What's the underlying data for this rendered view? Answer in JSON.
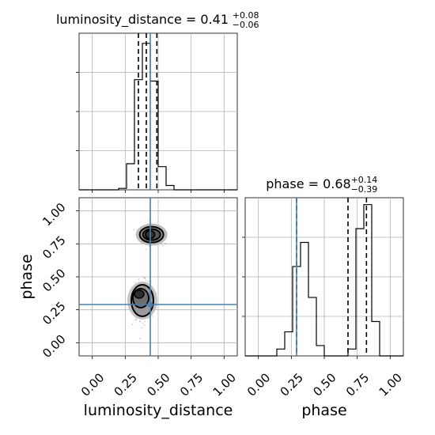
{
  "chart_data": {
    "type": "corner",
    "parameters": [
      "luminosity_distance",
      "phase"
    ],
    "truth": {
      "luminosity_distance": 0.44,
      "phase": 0.29
    },
    "truth_color": "#4682b4",
    "range": [
      -0.1,
      1.1
    ],
    "ticks": [
      0.0,
      0.25,
      0.5,
      0.75,
      1.0
    ],
    "tick_labels": [
      "0.00",
      "0.25",
      "0.50",
      "0.75",
      "1.00"
    ],
    "grid": true,
    "panels": [
      {
        "id": "hist-luminosity-distance",
        "kind": "histogram",
        "parameter": "luminosity_distance",
        "title": {
          "text": "luminosity_distance = 0.41",
          "upper": "+0.08",
          "lower": "−0.06"
        },
        "bin_edges": [
          -0.1,
          -0.04,
          0.02,
          0.08,
          0.14,
          0.2,
          0.26,
          0.32,
          0.38,
          0.44,
          0.5,
          0.56,
          0.62,
          0.68,
          0.74,
          0.8,
          0.86,
          0.92,
          0.98,
          1.04,
          1.1
        ],
        "counts": [
          0,
          0,
          0,
          0,
          0,
          1,
          18,
          76,
          101,
          75,
          16,
          3,
          0,
          0,
          0,
          0,
          0,
          0,
          0,
          0
        ],
        "ymax": 108,
        "quantile_lines": [
          0.35,
          0.41,
          0.49
        ]
      },
      {
        "id": "hist-phase",
        "kind": "histogram",
        "parameter": "phase",
        "title": {
          "text": "phase = 0.68",
          "upper": "+0.14",
          "lower": "−0.39"
        },
        "bin_edges": [
          -0.1,
          -0.04,
          0.02,
          0.08,
          0.14,
          0.2,
          0.26,
          0.32,
          0.38,
          0.44,
          0.5,
          0.56,
          0.62,
          0.68,
          0.74,
          0.8,
          0.86,
          0.92,
          0.98,
          1.04,
          1.1
        ],
        "counts": [
          0,
          0,
          0,
          0,
          2,
          7,
          26,
          33,
          17,
          3,
          0,
          0,
          0,
          2,
          37,
          44,
          10,
          0,
          0,
          0
        ],
        "ymax": 46,
        "quantile_lines": [
          0.29,
          0.68,
          0.82
        ]
      },
      {
        "id": "joint-luminosity-distance-phase",
        "kind": "2d",
        "x_parameter": "luminosity_distance",
        "y_parameter": "phase",
        "clusters": [
          {
            "center": [
              0.45,
              0.82
            ],
            "spread": [
              0.07,
              0.06
            ]
          },
          {
            "center": [
              0.38,
              0.32
            ],
            "spread": [
              0.06,
              0.13
            ]
          }
        ]
      }
    ]
  }
}
